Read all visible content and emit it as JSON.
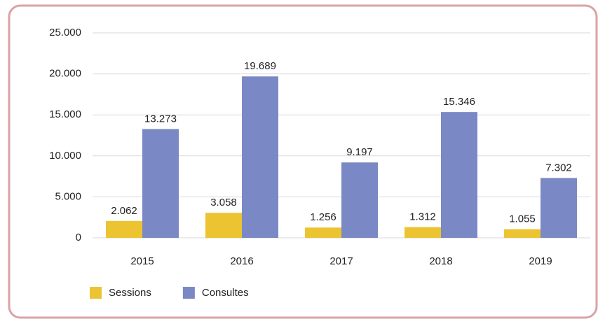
{
  "chart_data": {
    "type": "bar",
    "categories": [
      "2015",
      "2016",
      "2017",
      "2018",
      "2019"
    ],
    "series": [
      {
        "name": "Sessions",
        "color": "#ecc431",
        "values": [
          2062,
          3058,
          1256,
          1312,
          1055
        ],
        "value_labels": [
          "2.062",
          "3.058",
          "1.256",
          "1.312",
          "1.055"
        ]
      },
      {
        "name": "Consultes",
        "color": "#7a89c5",
        "values": [
          13273,
          19689,
          9197,
          15346,
          7302
        ],
        "value_labels": [
          "13.273",
          "19.689",
          "9.197",
          "15.346",
          "7.302"
        ]
      }
    ],
    "ylim": [
      0,
      25000
    ],
    "yticks": [
      0,
      {
        "value": 5000,
        "label": "5.000"
      },
      {
        "value": 10000,
        "label": "10.000"
      },
      {
        "value": 15000,
        "label": "15.000"
      },
      {
        "value": 20000,
        "label": "20.000"
      },
      {
        "value": 25000,
        "label": "25.000"
      }
    ],
    "grid": true,
    "legend": "bottom-left"
  }
}
